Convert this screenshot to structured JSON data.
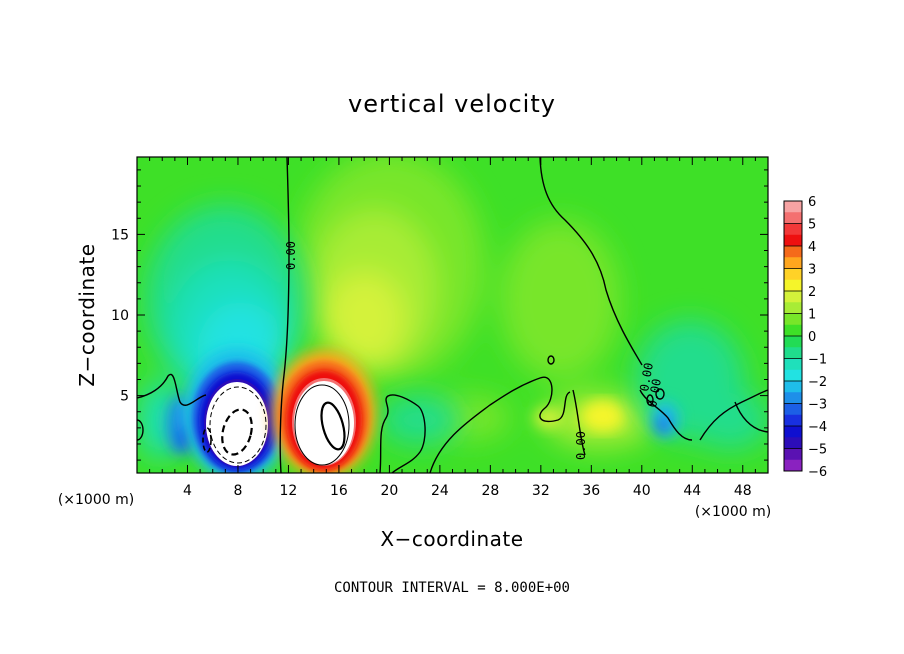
{
  "chart_data": {
    "type": "heatmap",
    "title": "vertical velocity",
    "xlabel": "X−coordinate",
    "ylabel": "Z−coordinate",
    "x_unit": "(×1000 m)",
    "y_unit": "(×1000 m)",
    "xlim": [
      0,
      50
    ],
    "ylim": [
      0.2,
      19.8
    ],
    "x_ticks": [
      4,
      8,
      12,
      16,
      20,
      24,
      28,
      32,
      36,
      40,
      44,
      48
    ],
    "y_ticks": [
      5,
      10,
      15
    ],
    "colorbar": {
      "ticks": [
        6,
        5,
        4,
        3,
        2,
        1,
        0,
        -1,
        -2,
        -3,
        -4,
        -5,
        -6
      ],
      "levels": [
        {
          "from": 5.5,
          "to": 6,
          "color": "#f7a3a3"
        },
        {
          "from": 5,
          "to": 5.5,
          "color": "#f47070"
        },
        {
          "from": 4.5,
          "to": 5,
          "color": "#f23838"
        },
        {
          "from": 4,
          "to": 4.5,
          "color": "#ee1010"
        },
        {
          "from": 3.5,
          "to": 4,
          "color": "#f56a1a"
        },
        {
          "from": 3,
          "to": 3.5,
          "color": "#ffa61e"
        },
        {
          "from": 2.5,
          "to": 3,
          "color": "#ffd227"
        },
        {
          "from": 2,
          "to": 2.5,
          "color": "#f5f52a"
        },
        {
          "from": 1.5,
          "to": 2,
          "color": "#d4f23a"
        },
        {
          "from": 1,
          "to": 1.5,
          "color": "#a8ec36"
        },
        {
          "from": 0.5,
          "to": 1,
          "color": "#78e629"
        },
        {
          "from": 0,
          "to": 0.5,
          "color": "#3ee027"
        },
        {
          "from": -0.5,
          "to": 0,
          "color": "#22dc55"
        },
        {
          "from": -1,
          "to": -0.5,
          "color": "#20dd8c"
        },
        {
          "from": -1.5,
          "to": -1,
          "color": "#1fe0bb"
        },
        {
          "from": -2,
          "to": -1.5,
          "color": "#22e2e2"
        },
        {
          "from": -2.5,
          "to": -2,
          "color": "#1fbdea"
        },
        {
          "from": -3,
          "to": -2.5,
          "color": "#1e8fe9"
        },
        {
          "from": -3.5,
          "to": -3,
          "color": "#1c5fe6"
        },
        {
          "from": -4,
          "to": -3.5,
          "color": "#1830e0"
        },
        {
          "from": -4.5,
          "to": -4,
          "color": "#0f0fd0"
        },
        {
          "from": -5,
          "to": -4.5,
          "color": "#2c0db8"
        },
        {
          "from": -5.5,
          "to": -5,
          "color": "#5a12b2"
        },
        {
          "from": -6,
          "to": -5.5,
          "color": "#8a22c0"
        }
      ]
    },
    "contour_interval": 8.0,
    "contour_labels": [
      "0.00",
      "0.00",
      "0.00",
      "0.00"
    ],
    "features": [
      {
        "name": "downdraft-core",
        "x_center": 8.6,
        "z_center": 3.6,
        "peak": -6,
        "note": "strong negative, dashed contours"
      },
      {
        "name": "updraft-core",
        "x_center": 14.6,
        "z_center": 3.6,
        "peak": 6,
        "note": "strong positive, solid contours"
      }
    ]
  },
  "footer": {
    "contour_note": "CONTOUR INTERVAL = 8.000E+00"
  }
}
